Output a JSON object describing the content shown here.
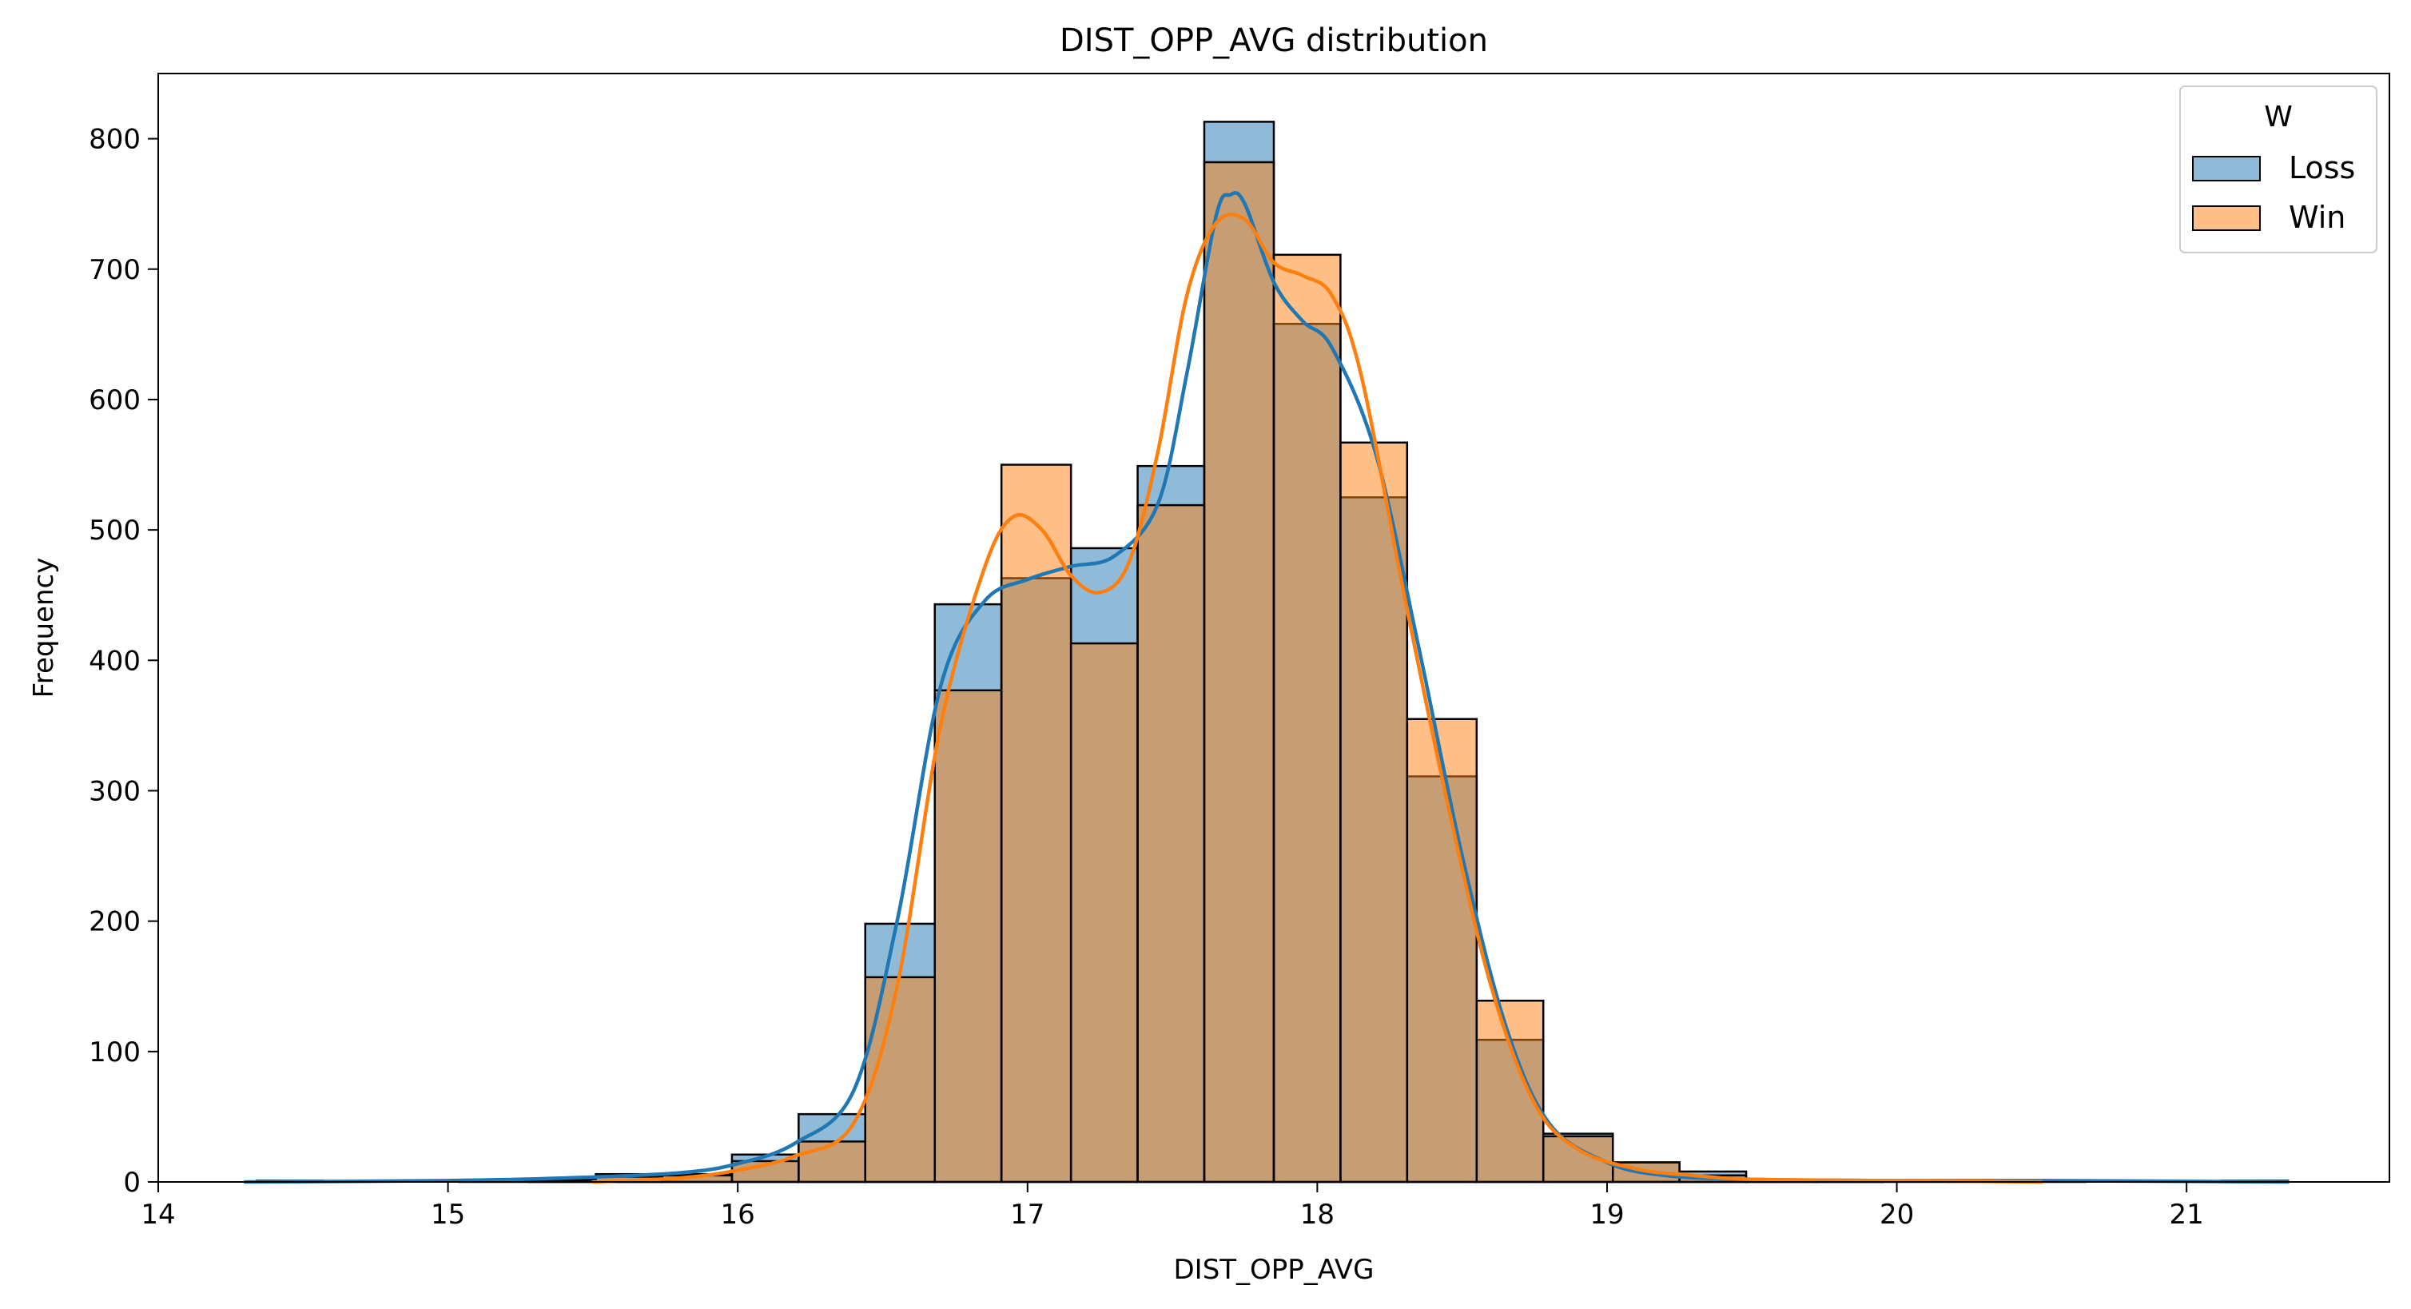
{
  "chart_data": {
    "type": "bar",
    "title": "DIST_OPP_AVG distribution",
    "xlabel": "DIST_OPP_AVG",
    "ylabel": "Frequency",
    "xlim": [
      14.0,
      21.7
    ],
    "ylim": [
      0,
      850
    ],
    "xticks": [
      14,
      15,
      16,
      17,
      18,
      19,
      20,
      21
    ],
    "yticks": [
      0,
      100,
      200,
      300,
      400,
      500,
      600,
      700,
      800
    ],
    "legend": {
      "title": "W",
      "position": "top-right"
    },
    "bins": [
      [
        14.34,
        14.57
      ],
      [
        14.57,
        14.81
      ],
      [
        14.81,
        15.04
      ],
      [
        15.04,
        15.28
      ],
      [
        15.28,
        15.51
      ],
      [
        15.51,
        15.74
      ],
      [
        15.74,
        15.98
      ],
      [
        15.98,
        16.21
      ],
      [
        16.21,
        16.44
      ],
      [
        16.44,
        16.68
      ],
      [
        16.68,
        16.91
      ],
      [
        16.91,
        17.15
      ],
      [
        17.15,
        17.38
      ],
      [
        17.38,
        17.61
      ],
      [
        17.61,
        17.85
      ],
      [
        17.85,
        18.08
      ],
      [
        18.08,
        18.31
      ],
      [
        18.31,
        18.55
      ],
      [
        18.55,
        18.78
      ],
      [
        18.78,
        19.02
      ],
      [
        19.02,
        19.25
      ],
      [
        19.25,
        19.48
      ],
      [
        19.48,
        19.72
      ],
      [
        19.72,
        19.95
      ],
      [
        19.95,
        20.18
      ],
      [
        20.18,
        20.42
      ],
      [
        20.42,
        20.65
      ],
      [
        20.65,
        20.89
      ],
      [
        20.89,
        21.12
      ],
      [
        21.12,
        21.35
      ]
    ],
    "series": [
      {
        "name": "Loss",
        "color": "#1f77b4",
        "values": [
          1,
          0,
          0,
          1,
          2,
          6,
          6,
          21,
          52,
          198,
          443,
          463,
          486,
          549,
          813,
          658,
          525,
          311,
          109,
          37,
          15,
          8,
          2,
          1,
          1,
          1,
          1,
          0,
          0,
          1
        ],
        "kde_x": [
          14.3,
          15.0,
          15.4,
          15.8,
          16.0,
          16.2,
          16.4,
          16.55,
          16.7,
          16.85,
          17.0,
          17.15,
          17.3,
          17.45,
          17.55,
          17.65,
          17.7,
          17.75,
          17.85,
          17.95,
          18.05,
          18.2,
          18.35,
          18.5,
          18.65,
          18.8,
          19.0,
          19.2,
          19.5,
          20.0,
          20.5,
          21.35
        ],
        "kde_y": [
          0,
          1,
          3,
          7,
          14,
          30,
          70,
          200,
          380,
          445,
          462,
          472,
          480,
          520,
          620,
          740,
          757,
          750,
          690,
          660,
          640,
          560,
          410,
          250,
          120,
          45,
          15,
          5,
          2,
          1,
          1,
          0
        ]
      },
      {
        "name": "Win",
        "color": "#ff7f0e",
        "values": [
          0,
          0,
          0,
          0,
          1,
          4,
          5,
          16,
          31,
          157,
          377,
          550,
          413,
          519,
          782,
          711,
          567,
          355,
          139,
          35,
          15,
          5,
          1,
          1,
          0,
          0,
          0,
          0,
          0,
          0
        ],
        "kde_x": [
          15.5,
          15.8,
          16.0,
          16.2,
          16.4,
          16.55,
          16.7,
          16.85,
          16.95,
          17.05,
          17.15,
          17.25,
          17.35,
          17.45,
          17.55,
          17.65,
          17.75,
          17.85,
          17.95,
          18.05,
          18.15,
          18.3,
          18.45,
          18.6,
          18.75,
          18.9,
          19.1,
          19.3,
          19.5,
          20.0,
          20.5
        ],
        "kde_y": [
          0,
          3,
          9,
          20,
          45,
          150,
          350,
          470,
          510,
          500,
          465,
          452,
          475,
          560,
          680,
          735,
          738,
          705,
          695,
          680,
          620,
          450,
          290,
          150,
          60,
          25,
          10,
          5,
          2,
          1,
          0
        ]
      }
    ]
  }
}
